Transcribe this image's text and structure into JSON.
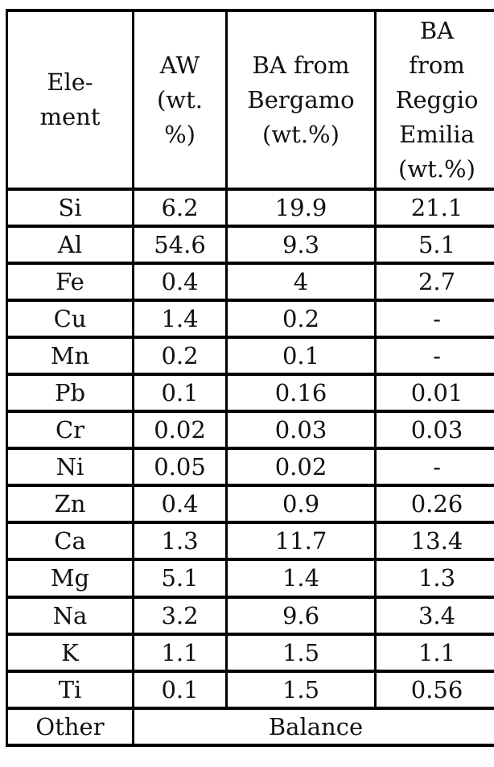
{
  "table": {
    "name": "elemental-composition-table",
    "columns": [
      {
        "label": "Ele-\nment"
      },
      {
        "label": "AW\n(wt.\n%)"
      },
      {
        "label": "BA from\nBergamo\n(wt.%)"
      },
      {
        "label": "BA\nfrom\nReggio\nEmilia\n(wt.%)"
      }
    ],
    "rows": [
      {
        "element": "Si",
        "aw": "6.2",
        "ba_bergamo": "19.9",
        "ba_reggio_emilia": "21.1"
      },
      {
        "element": "Al",
        "aw": "54.6",
        "ba_bergamo": "9.3",
        "ba_reggio_emilia": "5.1"
      },
      {
        "element": "Fe",
        "aw": "0.4",
        "ba_bergamo": "4",
        "ba_reggio_emilia": "2.7"
      },
      {
        "element": "Cu",
        "aw": "1.4",
        "ba_bergamo": "0.2",
        "ba_reggio_emilia": "-"
      },
      {
        "element": "Mn",
        "aw": "0.2",
        "ba_bergamo": "0.1",
        "ba_reggio_emilia": "-"
      },
      {
        "element": "Pb",
        "aw": "0.1",
        "ba_bergamo": "0.16",
        "ba_reggio_emilia": "0.01"
      },
      {
        "element": "Cr",
        "aw": "0.02",
        "ba_bergamo": "0.03",
        "ba_reggio_emilia": "0.03"
      },
      {
        "element": "Ni",
        "aw": "0.05",
        "ba_bergamo": "0.02",
        "ba_reggio_emilia": "-"
      },
      {
        "element": "Zn",
        "aw": "0.4",
        "ba_bergamo": "0.9",
        "ba_reggio_emilia": "0.26"
      },
      {
        "element": "Ca",
        "aw": "1.3",
        "ba_bergamo": "11.7",
        "ba_reggio_emilia": "13.4"
      },
      {
        "element": "Mg",
        "aw": "5.1",
        "ba_bergamo": "1.4",
        "ba_reggio_emilia": "1.3"
      },
      {
        "element": "Na",
        "aw": "3.2",
        "ba_bergamo": "9.6",
        "ba_reggio_emilia": "3.4"
      },
      {
        "element": "K",
        "aw": "1.1",
        "ba_bergamo": "1.5",
        "ba_reggio_emilia": "1.1"
      },
      {
        "element": "Ti",
        "aw": "0.1",
        "ba_bergamo": "1.5",
        "ba_reggio_emilia": "0.56"
      }
    ],
    "footer": {
      "element": "Other",
      "value": "Balance"
    },
    "border_color": "#000000",
    "background_color": "#ffffff"
  }
}
